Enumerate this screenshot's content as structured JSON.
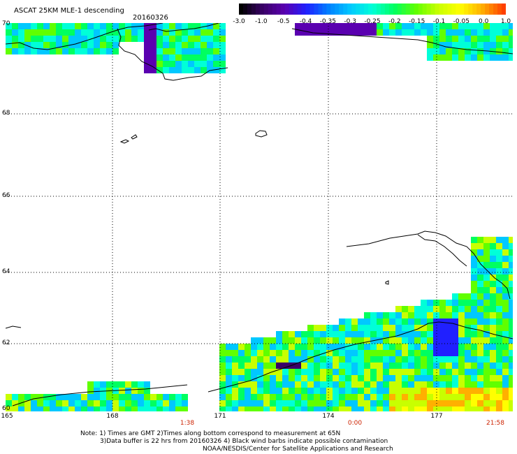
{
  "header": {
    "title": "ASCAT 25KM MLE-1 descending",
    "date": "20160326"
  },
  "colorbar": {
    "labels": [
      "-3.0",
      "-1.0",
      "-0.5",
      "-0.4",
      "-0.35",
      "-0.3",
      "-0.25",
      "-0.2",
      "-0.15",
      "-0.1",
      "-0.05",
      "0.0",
      "1.0"
    ],
    "colors": [
      "#000000",
      "#3a0068",
      "#5a00b0",
      "#2020ff",
      "#0080ff",
      "#00c8ff",
      "#00ffd8",
      "#00ff60",
      "#60ff00",
      "#c8ff00",
      "#ffff00",
      "#ffb000",
      "#ff4000"
    ]
  },
  "map": {
    "latitudes": [
      "70",
      "68",
      "66",
      "64",
      "62",
      "60"
    ],
    "longitudes": [
      "165",
      "168",
      "171",
      "174",
      "177"
    ],
    "times": [
      "1:38",
      "0:00",
      "21:58"
    ]
  },
  "notes": {
    "line1": "Note: 1) Times are GMT 2)Times along bottom correspond to measurement at 65N",
    "line2": "3)Data buffer is 22 hrs from 20160326 4) Black wind barbs indicate possible contamination",
    "line3": "NOAA/NESDIS/Center for Satellite Applications and Research"
  }
}
